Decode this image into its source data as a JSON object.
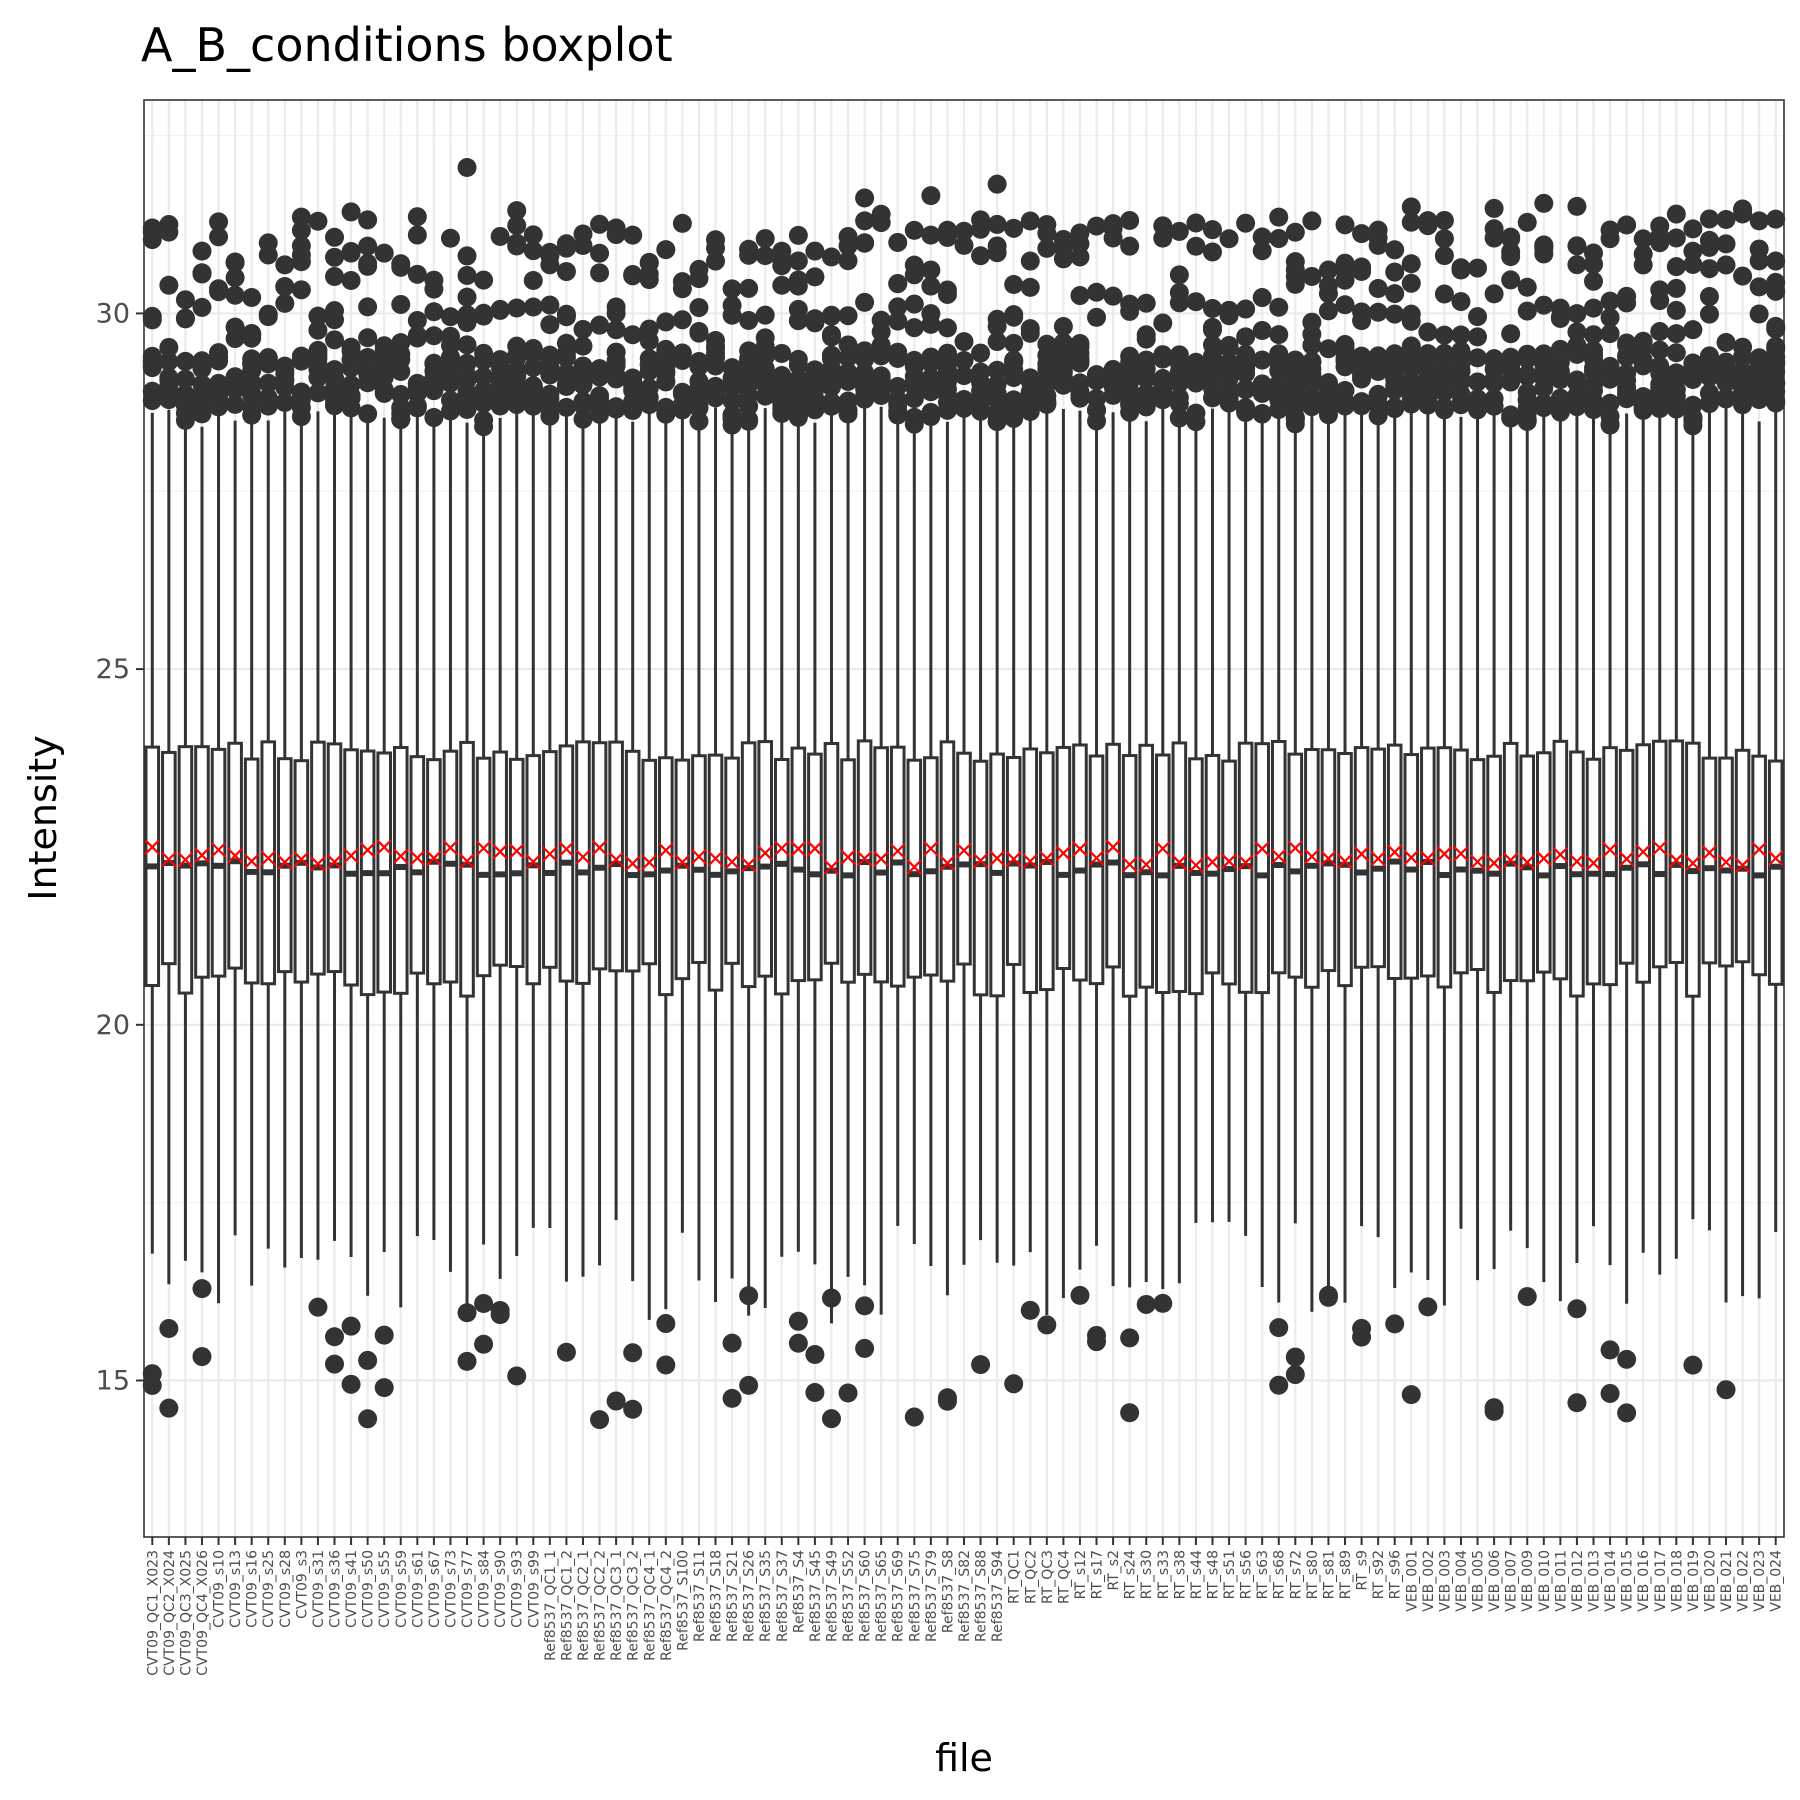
{
  "chart_data": {
    "type": "boxplot",
    "title": "A_B_conditions boxplot",
    "xlabel": "file",
    "ylabel": "Intensity",
    "ylim": [
      12.8,
      33
    ],
    "yticks": [
      15,
      20,
      25,
      30
    ],
    "grid": true,
    "legend": "none",
    "colors": {
      "box": "#333333",
      "mean_marker": "#ff0000",
      "grid": "#ebebeb"
    },
    "categories": [
      "CVT09_QC1_X023",
      "CVT09_QC2_X024",
      "CVT09_QC3_X025",
      "CVT09_QC4_X026",
      "CVT09_s10",
      "CVT09_s13",
      "CVT09_s16",
      "CVT09_s25",
      "CVT09_s28",
      "CVT09_s3",
      "CVT09_s31",
      "CVT09_s36",
      "CVT09_s41",
      "CVT09_s50",
      "CVT09_s55",
      "CVT09_s59",
      "CVT09_s61",
      "CVT09_s67",
      "CVT09_s73",
      "CVT09_s77",
      "CVT09_s84",
      "CVT09_s90",
      "CVT09_s93",
      "CVT09_s99",
      "Ref8537_QC1_1",
      "Ref8537_QC1_2",
      "Ref8537_QC2_1",
      "Ref8537_QC2_2",
      "Ref8537_QC3_1",
      "Ref8537_QC3_2",
      "Ref8537_QC4_1",
      "Ref8537_QC4_2",
      "Ref8537_S100",
      "Ref8537_S11",
      "Ref8537_S18",
      "Ref8537_S21",
      "Ref8537_S26",
      "Ref8537_S35",
      "Ref8537_S37",
      "Ref8537_S4",
      "Ref8537_S45",
      "Ref8537_S49",
      "Ref8537_S52",
      "Ref8537_S60",
      "Ref8537_S65",
      "Ref8537_S69",
      "Ref8537_S75",
      "Ref8537_S79",
      "Ref8537_S8",
      "Ref8537_S82",
      "Ref8537_S88",
      "Ref8537_S94",
      "RT_QC1",
      "RT_QC2",
      "RT_QC3",
      "RT_QC4",
      "RT_s12",
      "RT_s17",
      "RT_s2",
      "RT_s24",
      "RT_s30",
      "RT_s33",
      "RT_s38",
      "RT_s44",
      "RT_s48",
      "RT_s51",
      "RT_s56",
      "RT_s63",
      "RT_s68",
      "RT_s72",
      "RT_s80",
      "RT_s81",
      "RT_s89",
      "RT_s9",
      "RT_s92",
      "RT_s96",
      "VEB_001",
      "VEB_002",
      "VEB_003",
      "VEB_004",
      "VEB_005",
      "VEB_006",
      "VEB_007",
      "VEB_009",
      "VEB_010",
      "VEB_011",
      "VEB_012",
      "VEB_013",
      "VEB_014",
      "VEB_015",
      "VEB_016",
      "VEB_017",
      "VEB_018",
      "VEB_019",
      "VEB_020",
      "VEB_021",
      "VEB_022",
      "VEB_023",
      "VEB_024"
    ],
    "summary": {
      "whisker_low_range": [
        15.8,
        17.3
      ],
      "q1_range": [
        20.4,
        20.9
      ],
      "median_range": [
        22.1,
        22.3
      ],
      "mean_range": [
        22.2,
        22.5
      ],
      "q3_range": [
        23.7,
        24.0
      ],
      "whisker_high_range": [
        28.4,
        28.7
      ],
      "outlier_high_range": [
        28.3,
        32.2
      ],
      "outlier_low_range": [
        13.7,
        16.3
      ]
    }
  }
}
